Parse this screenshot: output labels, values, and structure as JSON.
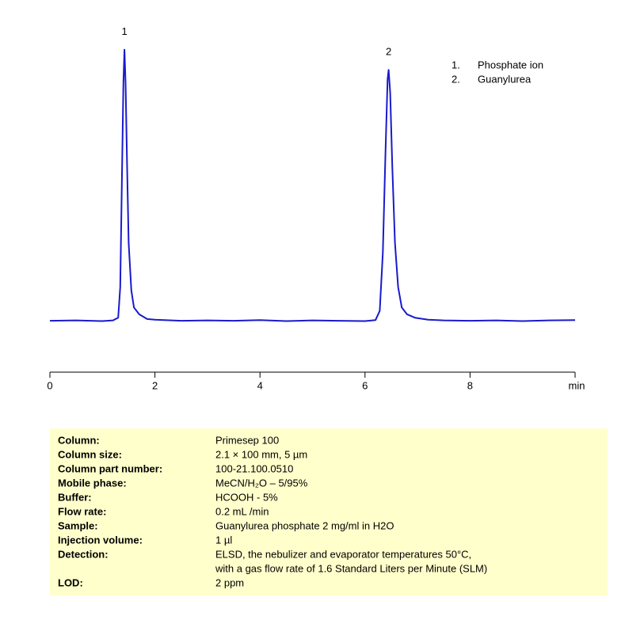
{
  "chart_data": {
    "type": "line",
    "x": [
      0,
      0.5,
      1.0,
      1.2,
      1.3,
      1.34,
      1.37,
      1.4,
      1.42,
      1.44,
      1.47,
      1.5,
      1.55,
      1.6,
      1.7,
      1.85,
      2.0,
      2.5,
      3.0,
      3.5,
      4.0,
      4.5,
      5.0,
      5.5,
      6.0,
      6.2,
      6.28,
      6.34,
      6.39,
      6.43,
      6.45,
      6.48,
      6.52,
      6.57,
      6.63,
      6.7,
      6.8,
      6.95,
      7.2,
      7.5,
      8.0,
      8.5,
      9.0,
      9.5,
      10.0
    ],
    "series": [
      {
        "color": "#1a1acc",
        "values": [
          15.1,
          15.2,
          15.0,
          15.2,
          16,
          25,
          55,
          85,
          94.7,
          85,
          60,
          38,
          24,
          19,
          17,
          15.6,
          15.4,
          15.1,
          15.2,
          15.1,
          15.3,
          15.0,
          15.2,
          15.1,
          15.0,
          15.3,
          18,
          35,
          65,
          86,
          88.8,
          82,
          60,
          38,
          25,
          19,
          17,
          16,
          15.4,
          15.2,
          15.1,
          15.2,
          15.0,
          15.2,
          15.3
        ]
      }
    ],
    "xlim": [
      0,
      10
    ],
    "xticks": [
      0,
      2,
      4,
      6,
      8
    ],
    "x_label": "min",
    "ylim": [
      0,
      100
    ],
    "peak_labels": [
      {
        "text": "1",
        "x": 1.42,
        "y": 94.7
      },
      {
        "text": "2",
        "x": 6.45,
        "y": 88.8
      }
    ],
    "legend": [
      {
        "num": "1.",
        "name": "Phosphate ion"
      },
      {
        "num": "2.",
        "name": "Guanylurea"
      }
    ]
  },
  "info_table": {
    "rows": [
      [
        "Column:",
        [
          "Primesep  100"
        ]
      ],
      [
        "Column size:",
        [
          "2.1 × 100 mm, 5 µm"
        ]
      ],
      [
        "Column part number:",
        [
          "100-21.100.0510"
        ]
      ],
      [
        "Mobile phase:",
        [
          "MeCN/H₂O – 5/95%"
        ]
      ],
      [
        "Buffer:",
        [
          "HCOOH  - 5%"
        ]
      ],
      [
        "Flow rate:",
        [
          "0.2 mL /min"
        ]
      ],
      [
        "Sample:",
        [
          "Guanylurea phosphate  2 mg/ml in H2O"
        ]
      ],
      [
        "Injection volume:",
        [
          "1  µl"
        ]
      ],
      [
        "Detection:",
        [
          "ELSD, the nebulizer and evaporator temperatures 50°C,",
          "with a gas flow rate of 1.6 Standard Liters per Minute (SLM)"
        ]
      ],
      [
        "LOD:",
        [
          "2 ppm"
        ]
      ]
    ]
  }
}
